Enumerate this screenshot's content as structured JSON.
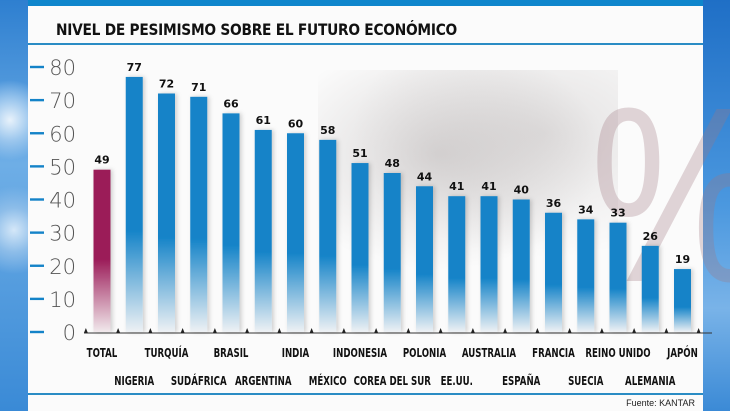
{
  "title": "NIVEL DE PESIMISMO SOBRE EL FUTURO ECONÓMICO",
  "source": "Fuente: KANTAR",
  "background_symbol": "%",
  "colors": {
    "header_band": "#0f86cc",
    "bar_countries": "#1483c8",
    "bar_total": "#9b1b58",
    "rule": "#2a8cc4"
  },
  "chart_data": {
    "type": "bar",
    "title": "NIVEL DE PESIMISMO SOBRE EL FUTURO ECONÓMICO",
    "xlabel": "",
    "ylabel": "",
    "ylim": [
      0,
      80
    ],
    "yticks": [
      0,
      10,
      20,
      30,
      40,
      50,
      60,
      70,
      80
    ],
    "grid": false,
    "categories": [
      "TOTAL",
      "NIGERIA",
      "TURQUÍA",
      "SUDÁFRICA",
      "BRASIL",
      "ARGENTINA",
      "INDIA",
      "MÉXICO",
      "INDONESIA",
      "COREA DEL SUR",
      "POLONIA",
      "EE.UU.",
      "AUSTRALIA",
      "ESPAÑA",
      "FRANCIA",
      "SUECIA",
      "REINO UNIDO",
      "ALEMANIA",
      "JAPÓN"
    ],
    "values": [
      49,
      77,
      72,
      71,
      66,
      61,
      60,
      58,
      51,
      48,
      44,
      41,
      41,
      40,
      36,
      34,
      33,
      26,
      19
    ],
    "highlight": "TOTAL",
    "data_labels": true,
    "source": "Fuente: KANTAR"
  }
}
